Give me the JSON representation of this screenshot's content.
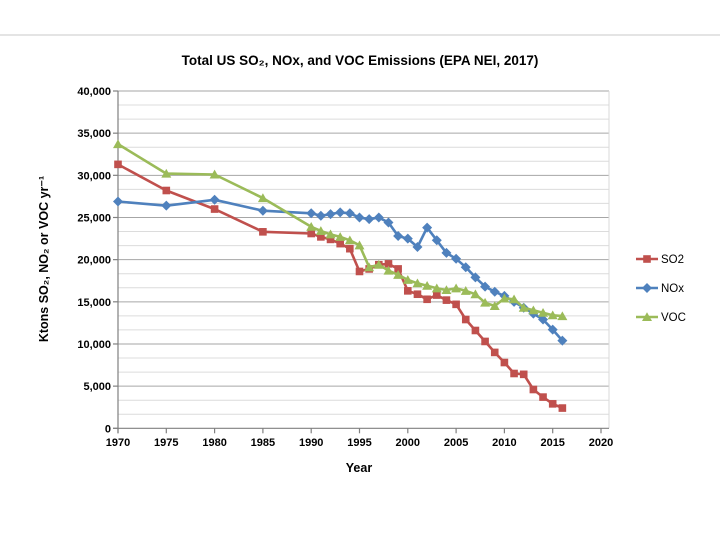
{
  "page": {
    "background": "#ffffff",
    "top_divider_color": "#c8c8c8"
  },
  "chart_data": {
    "type": "line",
    "title": "Total US SO₂, NOx, and VOC Emissions (EPA NEI, 2017)",
    "xlabel": "Year",
    "ylabel": "Ktons SO₂, NO₂ or VOC yr⁻¹",
    "xlim": [
      1970,
      2020
    ],
    "ylim": [
      0,
      40000
    ],
    "grid": "horizontal-only",
    "y_major_unit": 5000,
    "y_minor_unit": 1666.67,
    "legend_position": "right",
    "x_ticks": [
      1970,
      1975,
      1980,
      1985,
      1990,
      1995,
      2000,
      2005,
      2010,
      2015,
      2020
    ],
    "x_tick_labels": [
      "1970",
      "1975",
      "1980",
      "1985",
      "1990",
      "1995",
      "2000",
      "2005",
      "2010",
      "2015",
      "2020"
    ],
    "y_ticks": [
      0,
      5000,
      10000,
      15000,
      20000,
      25000,
      30000,
      35000,
      40000
    ],
    "y_tick_labels": [
      "0",
      "5,000",
      "10,000",
      "15,000",
      "20,000",
      "25,000",
      "30,000",
      "35,000",
      "40,000"
    ],
    "x": [
      1970,
      1975,
      1980,
      1985,
      1990,
      1991,
      1992,
      1993,
      1994,
      1995,
      1996,
      1997,
      1998,
      1999,
      2000,
      2001,
      2002,
      2003,
      2004,
      2005,
      2006,
      2007,
      2008,
      2009,
      2010,
      2011,
      2012,
      2013,
      2014,
      2015,
      2016
    ],
    "series": [
      {
        "name": "SO2",
        "color": "#C0504D",
        "marker": "square",
        "values": [
          31300,
          28200,
          26000,
          23300,
          23100,
          22700,
          22400,
          21900,
          21300,
          18600,
          18900,
          19400,
          19500,
          18900,
          16300,
          15900,
          15300,
          15800,
          15200,
          14700,
          12900,
          11600,
          10300,
          9000,
          7800,
          6500,
          6400,
          4600,
          3700,
          2900,
          2400
        ]
      },
      {
        "name": "NOx",
        "color": "#4F81BD",
        "marker": "diamond",
        "values": [
          26900,
          26400,
          27100,
          25800,
          25500,
          25200,
          25400,
          25600,
          25500,
          25000,
          24800,
          25000,
          24400,
          22800,
          22500,
          21500,
          23800,
          22300,
          20800,
          20100,
          19100,
          17900,
          16800,
          16200,
          15700,
          15000,
          14300,
          13600,
          12900,
          11700,
          10400
        ]
      },
      {
        "name": "VOC",
        "color": "#9BBB59",
        "marker": "triangle",
        "values": [
          33700,
          30200,
          30100,
          27300,
          23900,
          23400,
          23000,
          22700,
          22300,
          21700,
          19100,
          19400,
          18700,
          18200,
          17600,
          17200,
          16900,
          16600,
          16400,
          16600,
          16300,
          15900,
          14900,
          14500,
          15400,
          15300,
          14300,
          14000,
          13700,
          13400,
          13300
        ]
      }
    ],
    "axis_colors": {
      "axis_line": "#808080",
      "major_grid": "#A6A6A6",
      "minor_grid": "#DCDCDC",
      "plot_border": "#D9D9D9"
    }
  }
}
